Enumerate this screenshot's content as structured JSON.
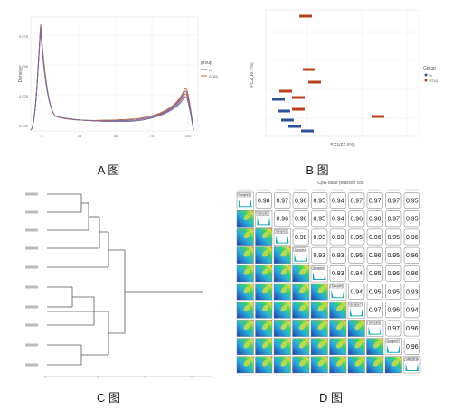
{
  "captions": {
    "a": "A 图",
    "b": "B 图",
    "c": "C 图",
    "d": "D 图"
  },
  "panel_a": {
    "ylabel": "Density",
    "legend_title": "group",
    "legend_items": [
      "N",
      "STAD"
    ],
    "y_ticks": [
      "0.075",
      "0.050",
      "0.025",
      "0.000"
    ],
    "x_ticks": [
      "0",
      "25",
      "50",
      "75",
      "100"
    ],
    "colors": {
      "N": "#5b6fbf",
      "STAD": "#d9652a"
    }
  },
  "panel_b": {
    "xlabel": "PC1(22.6%)",
    "ylabel": "PC2(16.7%)",
    "legend_title": "Group",
    "legend_items": [
      "N",
      "STAD"
    ],
    "colors": {
      "N": "#2e4f9a",
      "STAD": "#b5401a"
    }
  },
  "panel_d": {
    "title": "CpG base pearson cor.",
    "samples": [
      "Sample1",
      "Sample2",
      "Sample3",
      "Sample4",
      "Sample5",
      "Sample6",
      "Sample7",
      "Sample8",
      "Sample9",
      "Sample10"
    ],
    "upper": [
      [
        "0.98",
        "0.97",
        "0.96",
        "0.95",
        "0.94",
        "0.97",
        "0.97",
        "0.97",
        "0.95"
      ],
      [
        "0.96",
        "0.96",
        "0.95",
        "0.94",
        "0.96",
        "0.98",
        "0.97",
        "0.95"
      ],
      [
        "0.98",
        "0.93",
        "0.93",
        "0.95",
        "0.96",
        "0.95",
        "0.96"
      ],
      [
        "0.93",
        "0.93",
        "0.95",
        "0.96",
        "0.95",
        "0.96"
      ],
      [
        "0.93",
        "0.94",
        "0.95",
        "0.96",
        "0.96"
      ],
      [
        "0.94",
        "0.95",
        "0.95",
        "0.93"
      ],
      [
        "0.97",
        "0.96",
        "0.94"
      ],
      [
        "0.97",
        "0.96"
      ],
      [
        "0.96"
      ]
    ]
  }
}
